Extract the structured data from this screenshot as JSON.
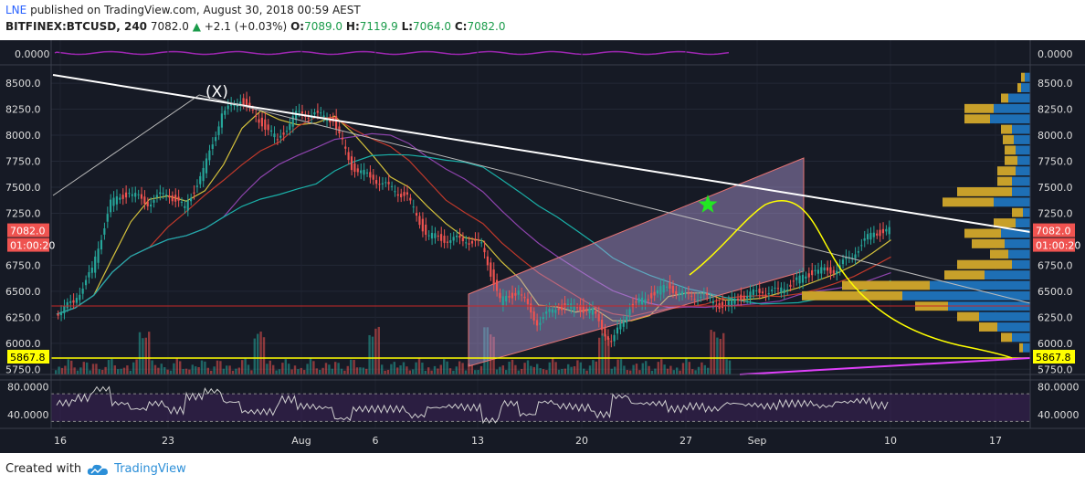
{
  "header": {
    "user": "LNE",
    "published": "published on TradingView.com, August 30, 2018 00:59 AEST",
    "symbol": "BITFINEX:BTCUSD, 240",
    "last": "7082.0",
    "arrow": "▲",
    "change": "+2.1 (+0.03%)",
    "o_label": "O:",
    "o": "7089.0",
    "h_label": "H:",
    "h": "7119.9",
    "l_label": "L:",
    "l": "7064.0",
    "c_label": "C:",
    "c": "7082.0"
  },
  "footer": {
    "created_with": "Created with",
    "brand": "TradingView"
  },
  "colors": {
    "background": "#161a25",
    "up": "#26a69a",
    "down": "#ef5350",
    "trendline": "#ffffff",
    "channel": "#b39ddb",
    "support": "#ffff00",
    "projection": "#ffff00",
    "magenta": "#e040fb",
    "volume_profile_buy": "#1e6fb5",
    "volume_profile_sell": "#c8a02a",
    "rsi_band": "#3b2255"
  },
  "icons": [
    "tradingview-cloud-icon",
    "star-icon"
  ],
  "chart_data": {
    "type": "candlestick",
    "symbol": "BITFINEX:BTCUSD",
    "interval": "240",
    "x_labels": [
      "16",
      "23",
      "Aug",
      "6",
      "13",
      "20",
      "27",
      "Sep",
      "10",
      "17"
    ],
    "ylim": [
      5700,
      8650
    ],
    "y_ticks": [
      "8500.0",
      "8250.0",
      "8000.0",
      "7750.0",
      "7500.0",
      "7250.0",
      "6750.0",
      "6500.0",
      "6250.0",
      "6000.0",
      "5750.0"
    ],
    "price_path": [
      {
        "x": "Jul 15",
        "y": 6280
      },
      {
        "x": "Jul 16",
        "y": 6400
      },
      {
        "x": "Jul 17",
        "y": 6700
      },
      {
        "x": "Jul 18",
        "y": 7350
      },
      {
        "x": "Jul 19",
        "y": 7450
      },
      {
        "x": "Jul 20",
        "y": 7350
      },
      {
        "x": "Jul 21",
        "y": 7450
      },
      {
        "x": "Jul 22",
        "y": 7300
      },
      {
        "x": "Jul 23",
        "y": 7650
      },
      {
        "x": "Jul 24",
        "y": 8200
      },
      {
        "x": "Jul 25",
        "y": 8350
      },
      {
        "x": "Jul 26",
        "y": 8150
      },
      {
        "x": "Jul 27",
        "y": 7950
      },
      {
        "x": "Jul 28",
        "y": 8200
      },
      {
        "x": "Jul 29",
        "y": 8200
      },
      {
        "x": "Jul 30",
        "y": 8150
      },
      {
        "x": "Jul 31",
        "y": 7700
      },
      {
        "x": "Aug 1",
        "y": 7600
      },
      {
        "x": "Aug 2",
        "y": 7500
      },
      {
        "x": "Aug 3",
        "y": 7400
      },
      {
        "x": "Aug 4",
        "y": 7050
      },
      {
        "x": "Aug 5",
        "y": 7000
      },
      {
        "x": "Aug 6",
        "y": 7000
      },
      {
        "x": "Aug 7",
        "y": 6950
      },
      {
        "x": "Aug 8",
        "y": 6400
      },
      {
        "x": "Aug 9",
        "y": 6500
      },
      {
        "x": "Aug 10",
        "y": 6200
      },
      {
        "x": "Aug 11",
        "y": 6350
      },
      {
        "x": "Aug 12",
        "y": 6350
      },
      {
        "x": "Aug 13",
        "y": 6300
      },
      {
        "x": "Aug 14",
        "y": 6000
      },
      {
        "x": "Aug 15",
        "y": 6350
      },
      {
        "x": "Aug 16",
        "y": 6450
      },
      {
        "x": "Aug 17",
        "y": 6550
      },
      {
        "x": "Aug 18",
        "y": 6450
      },
      {
        "x": "Aug 19",
        "y": 6450
      },
      {
        "x": "Aug 20",
        "y": 6350
      },
      {
        "x": "Aug 21",
        "y": 6450
      },
      {
        "x": "Aug 22",
        "y": 6500
      },
      {
        "x": "Aug 23",
        "y": 6500
      },
      {
        "x": "Aug 24",
        "y": 6600
      },
      {
        "x": "Aug 25",
        "y": 6700
      },
      {
        "x": "Aug 26",
        "y": 6700
      },
      {
        "x": "Aug 27",
        "y": 6850
      },
      {
        "x": "Aug 28",
        "y": 7050
      },
      {
        "x": "Aug 29",
        "y": 7082
      }
    ],
    "last_price": "7082.0",
    "countdown": "01:00:20",
    "support_level": "5867.8",
    "annotation": "(X)",
    "top_indicator": {
      "value": "0.0000"
    },
    "rsi": {
      "ylim": [
        20,
        90
      ],
      "ticks": [
        "80.0000",
        "40.0000"
      ],
      "upper": 70,
      "lower": 30
    },
    "volume_profile": [
      {
        "price": 8550,
        "buy": 3,
        "sell": 2
      },
      {
        "price": 8450,
        "buy": 5,
        "sell": 2
      },
      {
        "price": 8350,
        "buy": 12,
        "sell": 4
      },
      {
        "price": 8250,
        "buy": 20,
        "sell": 16
      },
      {
        "price": 8150,
        "buy": 22,
        "sell": 14
      },
      {
        "price": 8050,
        "buy": 10,
        "sell": 6
      },
      {
        "price": 7950,
        "buy": 9,
        "sell": 6
      },
      {
        "price": 7850,
        "buy": 8,
        "sell": 6
      },
      {
        "price": 7750,
        "buy": 7,
        "sell": 7
      },
      {
        "price": 7650,
        "buy": 8,
        "sell": 10
      },
      {
        "price": 7550,
        "buy": 10,
        "sell": 8
      },
      {
        "price": 7450,
        "buy": 10,
        "sell": 30
      },
      {
        "price": 7350,
        "buy": 20,
        "sell": 28
      },
      {
        "price": 7250,
        "buy": 4,
        "sell": 6
      },
      {
        "price": 7150,
        "buy": 8,
        "sell": 12
      },
      {
        "price": 7050,
        "buy": 16,
        "sell": 20
      },
      {
        "price": 6950,
        "buy": 14,
        "sell": 18
      },
      {
        "price": 6850,
        "buy": 12,
        "sell": 10
      },
      {
        "price": 6750,
        "buy": 10,
        "sell": 30
      },
      {
        "price": 6650,
        "buy": 25,
        "sell": 22
      },
      {
        "price": 6550,
        "buy": 55,
        "sell": 48
      },
      {
        "price": 6450,
        "buy": 70,
        "sell": 55
      },
      {
        "price": 6350,
        "buy": 45,
        "sell": 18
      },
      {
        "price": 6250,
        "buy": 28,
        "sell": 12
      },
      {
        "price": 6150,
        "buy": 18,
        "sell": 10
      },
      {
        "price": 6050,
        "buy": 10,
        "sell": 6
      },
      {
        "price": 5950,
        "buy": 4,
        "sell": 2
      }
    ]
  }
}
